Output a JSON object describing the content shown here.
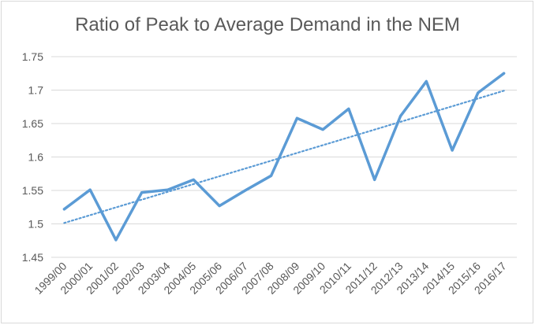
{
  "chart_data": {
    "type": "line",
    "title": "Ratio of Peak to Average Demand in the NEM",
    "xlabel": "",
    "ylabel": "",
    "categories": [
      "1999/00",
      "2000/01",
      "2001/02",
      "2002/03",
      "2003/04",
      "2004/05",
      "2005/06",
      "2006/07",
      "2007/08",
      "2008/09",
      "2009/10",
      "2010/11",
      "2011/12",
      "2012/13",
      "2013/14",
      "2014/15",
      "2015/16",
      "2016/17"
    ],
    "series": [
      {
        "color": "#5b9bd5",
        "values": [
          1.522,
          1.551,
          1.476,
          1.547,
          1.551,
          1.566,
          1.527,
          1.55,
          1.572,
          1.658,
          1.641,
          1.672,
          1.566,
          1.661,
          1.713,
          1.61,
          1.696,
          1.725
        ]
      }
    ],
    "trendline": {
      "style": "dotted",
      "type": "linear",
      "color": "#5b9bd5"
    },
    "yticks": [
      "1.45",
      "1.5",
      "1.55",
      "1.6",
      "1.65",
      "1.7",
      "1.75"
    ],
    "ylim": [
      1.45,
      1.75
    ],
    "grid": true,
    "legend": "none"
  }
}
